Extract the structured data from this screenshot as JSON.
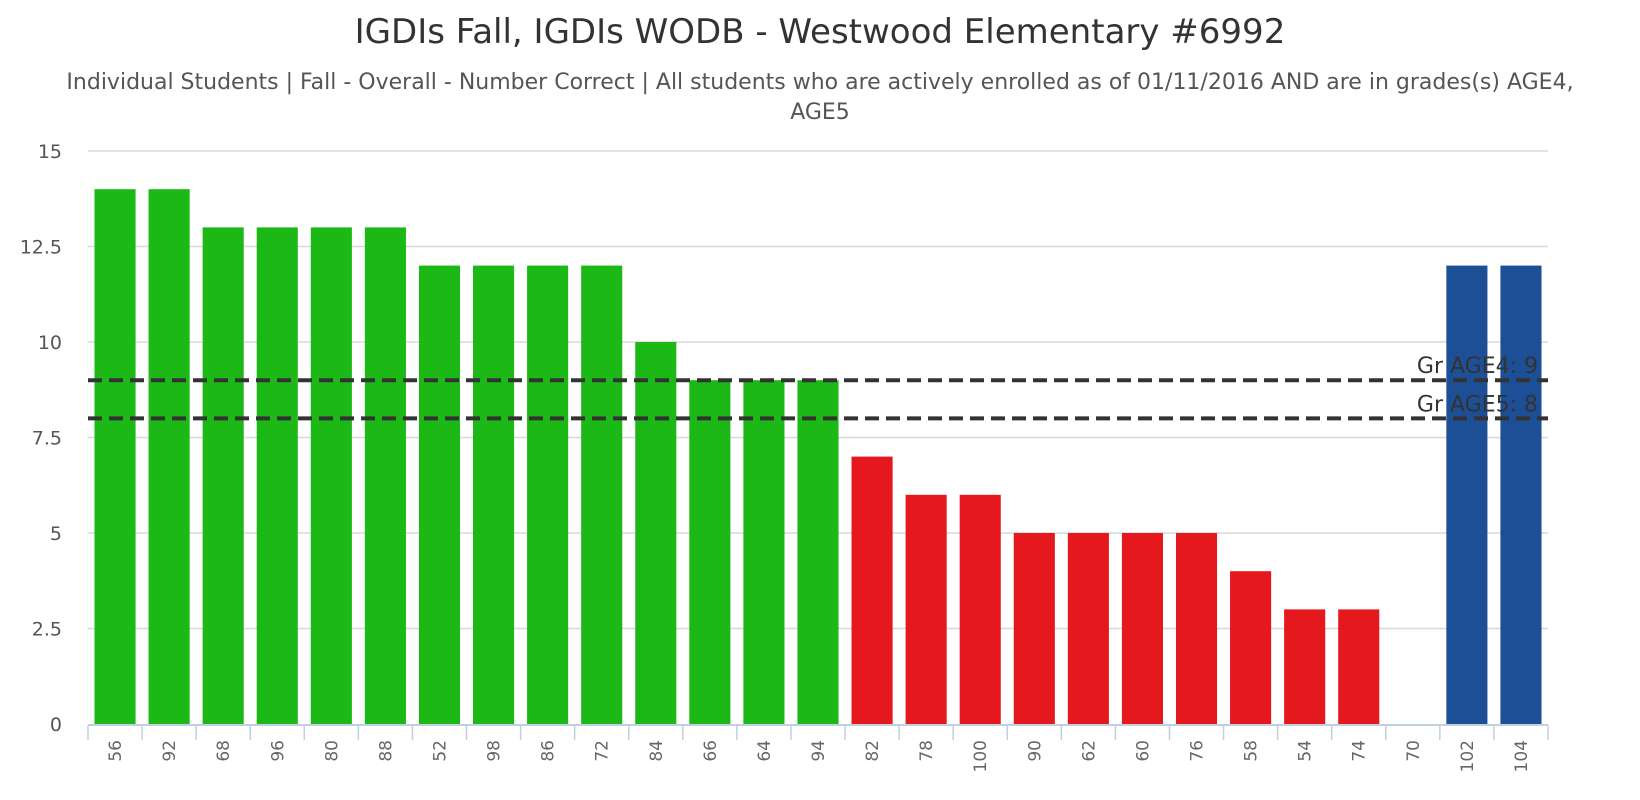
{
  "chart_data": {
    "type": "bar",
    "title": "IGDIs Fall, IGDIs WODB - Westwood Elementary #6992",
    "subtitle_line1": "Individual Students | Fall - Overall - Number Correct | All students who are actively enrolled as of 01/11/2016 AND are in grades(s) AGE4,",
    "subtitle_line2": "AGE5",
    "xlabel": "",
    "ylabel": "",
    "ylim": [
      0,
      15
    ],
    "yticks": [
      "0",
      "2.5",
      "5",
      "7.5",
      "10",
      "12.5",
      "15"
    ],
    "grid": true,
    "categories": [
      "56",
      "92",
      "68",
      "96",
      "80",
      "88",
      "52",
      "98",
      "86",
      "72",
      "84",
      "66",
      "64",
      "94",
      "82",
      "78",
      "100",
      "90",
      "62",
      "60",
      "76",
      "58",
      "54",
      "74",
      "70",
      "102",
      "104"
    ],
    "values": [
      14,
      14,
      13,
      13,
      13,
      13,
      12,
      12,
      12,
      12,
      10,
      9,
      9,
      9,
      7,
      6,
      6,
      5,
      5,
      5,
      5,
      4,
      3,
      3,
      0,
      12,
      12
    ],
    "bar_colors": [
      "#1cb816",
      "#1cb816",
      "#1cb816",
      "#1cb816",
      "#1cb816",
      "#1cb816",
      "#1cb816",
      "#1cb816",
      "#1cb816",
      "#1cb816",
      "#1cb816",
      "#1cb816",
      "#1cb816",
      "#1cb816",
      "#e4181d",
      "#e4181d",
      "#e4181d",
      "#e4181d",
      "#e4181d",
      "#e4181d",
      "#e4181d",
      "#e4181d",
      "#e4181d",
      "#e4181d",
      "#e4181d",
      "#1c4f96",
      "#1c4f96"
    ],
    "benchmarks": [
      {
        "label": "Gr AGE4: 9",
        "value": 9
      },
      {
        "label": "Gr AGE5: 8",
        "value": 8
      }
    ],
    "colors": {
      "above": "#1cb816",
      "below": "#e4181d",
      "other": "#1c4f96",
      "benchmark": "#333333",
      "grid": "#d8d8d8"
    }
  }
}
